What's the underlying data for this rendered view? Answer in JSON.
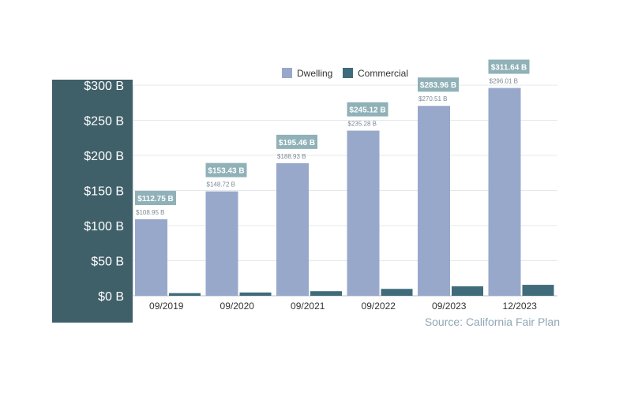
{
  "chart_data": {
    "type": "bar",
    "categories": [
      "09/2019",
      "09/2020",
      "09/2021",
      "09/2022",
      "09/2023",
      "12/2023"
    ],
    "series": [
      {
        "name": "Dwelling",
        "values": [
          108.95,
          148.72,
          188.93,
          235.28,
          270.51,
          296.01
        ],
        "labels": [
          "$108.95 B",
          "$148.72 B",
          "$188.93 B",
          "$235.28 B",
          "$270.51 B",
          "$296.01 B"
        ]
      },
      {
        "name": "Commercial",
        "values": [
          3.8,
          4.71,
          6.53,
          9.84,
          13.45,
          15.63
        ]
      }
    ],
    "totals": [
      112.75,
      153.43,
      195.46,
      245.12,
      283.96,
      311.64
    ],
    "total_labels": [
      "$112.75 B",
      "$153.43 B",
      "$195.46 B",
      "$245.12 B",
      "$283.96 B",
      "$311.64 B"
    ],
    "yticks": [
      0,
      50,
      100,
      150,
      200,
      250,
      300
    ],
    "ytick_labels": [
      "$0 B",
      "$50 B",
      "$100 B",
      "$150 B",
      "$200 B",
      "$250 B",
      "$300 B"
    ],
    "ylim": [
      0,
      300
    ],
    "title": "",
    "xlabel": "",
    "ylabel": "",
    "legend_position": "top",
    "grid": true,
    "colors": {
      "dwelling": "#97a8cb",
      "commercial": "#3f6b7a",
      "total_box": "#8fb1b7",
      "axis_panel": "#3f5f69"
    }
  },
  "source": "Source: California Fair Plan"
}
